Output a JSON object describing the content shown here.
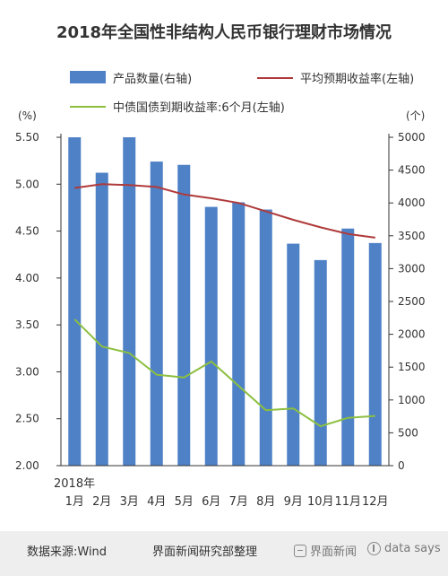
{
  "title": "2018年全国性非结构人民币银行理财市场情况",
  "chart_data": {
    "type": "bar",
    "year_label": "2018年",
    "categories": [
      "1月",
      "2月",
      "3月",
      "4月",
      "5月",
      "6月",
      "7月",
      "8月",
      "9月",
      "10月",
      "11月",
      "12月"
    ],
    "left_axis": {
      "unit": "(%)",
      "range": [
        2.0,
        5.5
      ],
      "ticks": [
        "2.00",
        "2.50",
        "3.00",
        "3.50",
        "4.00",
        "4.50",
        "5.00",
        "5.50"
      ]
    },
    "right_axis": {
      "unit": "(个)",
      "range": [
        0,
        5000
      ],
      "ticks": [
        "0",
        "500",
        "1000",
        "1500",
        "2000",
        "2500",
        "3000",
        "3500",
        "4000",
        "4500",
        "5000"
      ]
    },
    "series": [
      {
        "name": "产品数量(右轴)",
        "kind": "bar",
        "axis": "right",
        "color": "#4f81c7",
        "values": [
          5000,
          4460,
          5000,
          4630,
          4580,
          3940,
          4010,
          3900,
          3380,
          3130,
          3610,
          3390
        ]
      },
      {
        "name": "平均预期收益率(左轴)",
        "kind": "line",
        "axis": "left",
        "color": "#b03a3a",
        "values": [
          4.96,
          5.0,
          4.99,
          4.97,
          4.89,
          4.85,
          4.8,
          4.71,
          4.62,
          4.54,
          4.47,
          4.43
        ]
      },
      {
        "name": "中债国债到期收益率:6个月(左轴)",
        "kind": "line",
        "axis": "left",
        "color": "#8cbf3f",
        "values": [
          3.56,
          3.27,
          3.2,
          2.97,
          2.94,
          3.11,
          2.85,
          2.59,
          2.61,
          2.42,
          2.51,
          2.53
        ]
      }
    ]
  },
  "footer": {
    "source": "数据来源:Wind",
    "credit": "界面新闻研究部整理",
    "brand1": "界面新闻",
    "brand2": "data says"
  }
}
